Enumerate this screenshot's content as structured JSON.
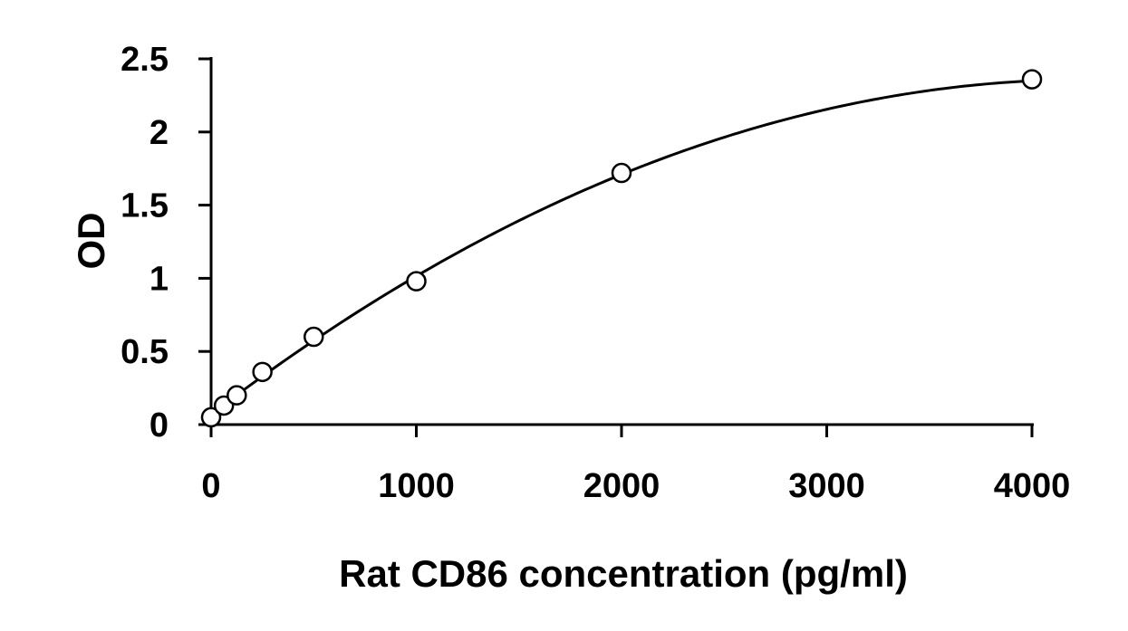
{
  "chart_data": {
    "type": "scatter",
    "title": "",
    "xlabel": "Rat CD86 concentration (pg/ml)",
    "ylabel": "OD",
    "xlim": [
      0,
      4000
    ],
    "ylim": [
      0,
      2.5
    ],
    "x_ticks": [
      0,
      1000,
      2000,
      3000,
      4000
    ],
    "y_ticks": [
      0,
      0.5,
      1,
      1.5,
      2,
      2.5
    ],
    "x_tick_labels": [
      "0",
      "1000",
      "2000",
      "3000",
      "4000"
    ],
    "y_tick_labels": [
      "0",
      "0.5",
      "1",
      "1.5",
      "2",
      "2.5"
    ],
    "grid": false,
    "legend": "none",
    "series": [
      {
        "marker": "open-circle",
        "x": [
          0,
          62.5,
          125,
          250,
          500,
          1000,
          2000,
          4000
        ],
        "y": [
          0.05,
          0.13,
          0.2,
          0.36,
          0.6,
          0.98,
          1.72,
          2.36
        ]
      }
    ],
    "fit_curve": {
      "type": "polynomial",
      "color": "#000000",
      "coefficients": [
        0.07,
        0.00107,
        -1.25e-07
      ]
    }
  }
}
